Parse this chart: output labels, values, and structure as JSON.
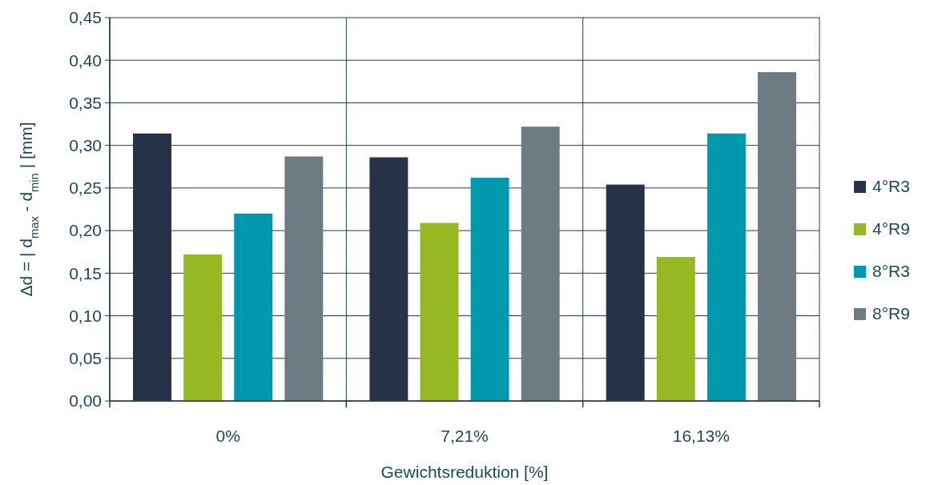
{
  "chart_data": {
    "type": "bar",
    "xlabel": "Gewichtsreduktion [%]",
    "ylabel": "Δd = | d$_{max}$ - d$_{min}$ |   [mm]",
    "categories": [
      "0%",
      "7,21%",
      "16,13%"
    ],
    "series": [
      {
        "name": "4°R3",
        "color": "#273248",
        "values": [
          0.314,
          0.286,
          0.254
        ]
      },
      {
        "name": "4°R9",
        "color": "#97b823",
        "values": [
          0.172,
          0.209,
          0.169
        ]
      },
      {
        "name": "8°R3",
        "color": "#0098ad",
        "values": [
          0.22,
          0.262,
          0.314
        ]
      },
      {
        "name": "8°R9",
        "color": "#6e7b83",
        "values": [
          0.287,
          0.322,
          0.386
        ]
      }
    ],
    "ylim": [
      0,
      0.45
    ],
    "yticks": [
      {
        "value": 0,
        "label": "0,00"
      },
      {
        "value": 0.05,
        "label": "0,05"
      },
      {
        "value": 0.1,
        "label": "0,10"
      },
      {
        "value": 0.15,
        "label": "0,15"
      },
      {
        "value": 0.2,
        "label": "0,20"
      },
      {
        "value": 0.25,
        "label": "0,25"
      },
      {
        "value": 0.3,
        "label": "0,30"
      },
      {
        "value": 0.35,
        "label": "0,35"
      },
      {
        "value": 0.4,
        "label": "0,40"
      },
      {
        "value": 0.45,
        "label": "0,45"
      }
    ],
    "grid": true,
    "legend": "right"
  }
}
